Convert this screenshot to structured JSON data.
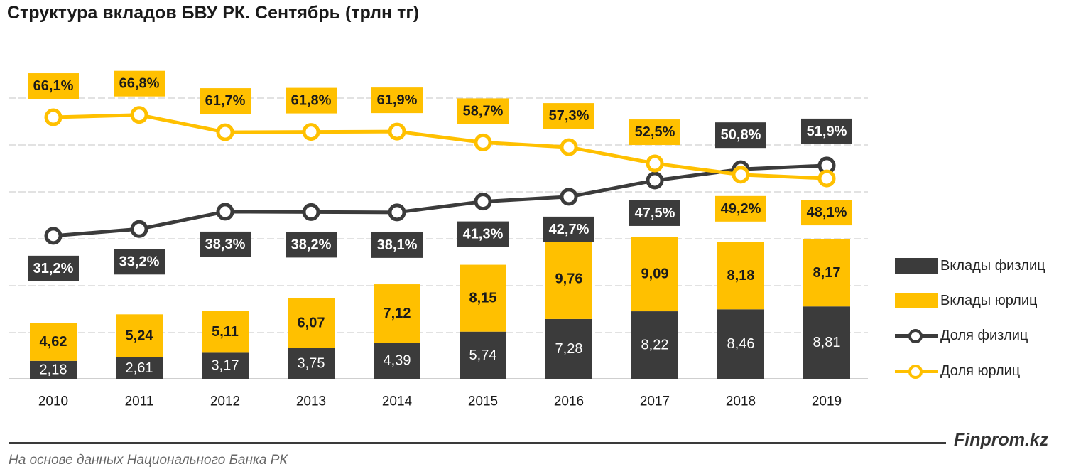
{
  "title": "Структура вкладов БВУ РК. Сентябрь (трлн тг)",
  "footer": {
    "source": "На основе данных Национального Банка РК",
    "brand": "Finprom.kz"
  },
  "colors": {
    "dark": "#3b3b3b",
    "yellow": "#ffc000",
    "grid": "#d9d9d9"
  },
  "legend": [
    {
      "label": "Вклады физлиц",
      "kind": "bar",
      "color": "dark"
    },
    {
      "label": "Вклады юрлиц",
      "kind": "bar",
      "color": "yellow"
    },
    {
      "label": "Доля физлиц",
      "kind": "line",
      "color": "dark"
    },
    {
      "label": "Доля юрлиц",
      "kind": "line",
      "color": "yellow"
    }
  ],
  "chart_data": {
    "type": "bar",
    "stacked": true,
    "categories": [
      "2010",
      "2011",
      "2012",
      "2013",
      "2014",
      "2015",
      "2016",
      "2017",
      "2018",
      "2019"
    ],
    "series": [
      {
        "name": "Вклады физлиц",
        "type": "bar",
        "values": [
          2.18,
          2.61,
          3.17,
          3.75,
          4.39,
          5.74,
          7.28,
          8.22,
          8.46,
          8.81
        ],
        "labels": [
          "2,18",
          "2,61",
          "3,17",
          "3,75",
          "4,39",
          "5,74",
          "7,28",
          "8,22",
          "8,46",
          "8,81"
        ]
      },
      {
        "name": "Вклады юрлиц",
        "type": "bar",
        "values": [
          4.62,
          5.24,
          5.11,
          6.07,
          7.12,
          8.15,
          9.76,
          9.09,
          8.18,
          8.17
        ],
        "labels": [
          "4,62",
          "5,24",
          "5,11",
          "6,07",
          "7,12",
          "8,15",
          "9,76",
          "9,09",
          "8,18",
          "8,17"
        ]
      },
      {
        "name": "Доля физлиц",
        "type": "line",
        "values": [
          31.2,
          33.2,
          38.3,
          38.2,
          38.1,
          41.3,
          42.7,
          47.5,
          50.8,
          51.9
        ],
        "labels": [
          "31,2%",
          "33,2%",
          "38,3%",
          "38,2%",
          "38,1%",
          "41,3%",
          "42,7%",
          "47,5%",
          "50,8%",
          "51,9%"
        ]
      },
      {
        "name": "Доля юрлиц",
        "type": "line",
        "values": [
          66.1,
          66.8,
          61.7,
          61.8,
          61.9,
          58.7,
          57.3,
          52.5,
          49.2,
          48.1
        ],
        "labels": [
          "66,1%",
          "66,8%",
          "61,7%",
          "61,8%",
          "61,9%",
          "58,7%",
          "57,3%",
          "52,5%",
          "49,2%",
          "48,1%"
        ]
      }
    ],
    "title": "Структура вкладов БВУ РК. Сентябрь (трлн тг)",
    "xlabel": "",
    "ylabel": "",
    "legend_position": "right",
    "grid": true
  }
}
